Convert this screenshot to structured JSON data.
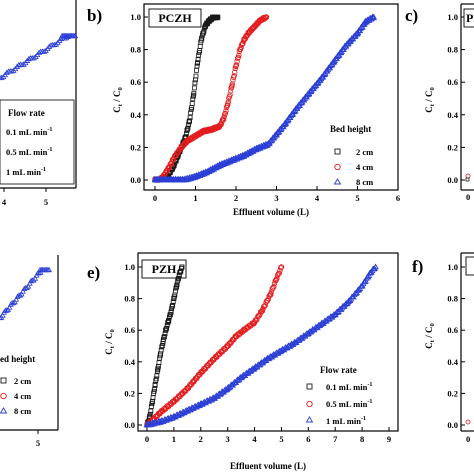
{
  "figure": {
    "panel_letters": {
      "b": "b)",
      "c": "c)",
      "e": "e)",
      "f": "f)"
    },
    "titles": {
      "b": "PCZH",
      "c": "PI",
      "e": "PZH",
      "f": ""
    },
    "ylabel": "Ct / C0",
    "xlabel": "Effluent volume (L)"
  },
  "legends": {
    "a": {
      "title": "Flow rate",
      "entries": [
        "0.1 mL min",
        "0.5 mL min",
        "1 mL min"
      ],
      "superscript": "-1"
    },
    "b": {
      "title": "Bed height",
      "entries": [
        "2 cm",
        "4 cm",
        "8 cm"
      ]
    },
    "d": {
      "title": "ed height",
      "entries": [
        "2 cm",
        "4 cm",
        "8 cm"
      ]
    },
    "e": {
      "title": "Flow rate",
      "entries": [
        "0.1 mL min",
        "0.5 mL min",
        "1 mL min"
      ],
      "superscript": "-1"
    }
  },
  "colors": {
    "black": "#1a1a1a",
    "red": "#e41a1c",
    "blue": "#2b3fd6"
  },
  "chart_data": [
    {
      "panel": "b",
      "type": "scatter",
      "title": "PCZH",
      "xlabel": "Effluent volume (L)",
      "ylabel": "Ct / C0",
      "xlim": [
        0,
        6
      ],
      "ylim": [
        0,
        1.0
      ],
      "xticks": [
        0,
        1,
        2,
        3,
        4,
        5,
        6
      ],
      "yticks": [
        0.0,
        0.2,
        0.4,
        0.6,
        0.8,
        1.0
      ],
      "legend_position": "right",
      "series": [
        {
          "name": "2 cm",
          "marker": "square",
          "color": "#1a1a1a",
          "x": [
            0.0,
            0.1,
            0.3,
            0.45,
            0.55,
            0.65,
            0.75,
            0.85,
            0.95,
            1.05,
            1.15,
            1.25,
            1.35,
            1.45,
            1.55
          ],
          "y": [
            0.0,
            0.0,
            0.02,
            0.08,
            0.14,
            0.2,
            0.26,
            0.36,
            0.52,
            0.72,
            0.87,
            0.95,
            0.98,
            1.0,
            1.0
          ]
        },
        {
          "name": "4 cm",
          "marker": "circle",
          "color": "#e41a1c",
          "x": [
            0.0,
            0.1,
            0.2,
            0.35,
            0.5,
            0.65,
            0.8,
            1.0,
            1.2,
            1.4,
            1.6,
            1.7,
            1.8,
            1.9,
            2.0,
            2.1,
            2.2,
            2.3,
            2.45,
            2.6,
            2.75
          ],
          "y": [
            0.0,
            0.0,
            0.02,
            0.08,
            0.15,
            0.2,
            0.24,
            0.27,
            0.3,
            0.31,
            0.33,
            0.38,
            0.47,
            0.58,
            0.7,
            0.8,
            0.86,
            0.9,
            0.94,
            0.98,
            1.0
          ]
        },
        {
          "name": "8 cm",
          "marker": "triangle",
          "color": "#2b3fd6",
          "x": [
            0.0,
            0.3,
            0.5,
            0.7,
            1.0,
            1.3,
            1.6,
            1.9,
            2.2,
            2.5,
            2.8,
            3.0,
            3.2,
            3.5,
            3.8,
            4.1,
            4.4,
            4.7,
            5.0,
            5.2,
            5.4
          ],
          "y": [
            0.0,
            0.0,
            0.0,
            0.0,
            0.02,
            0.05,
            0.09,
            0.12,
            0.15,
            0.19,
            0.22,
            0.28,
            0.34,
            0.44,
            0.53,
            0.62,
            0.72,
            0.82,
            0.9,
            0.97,
            1.0
          ]
        }
      ]
    },
    {
      "panel": "e",
      "type": "scatter",
      "title": "PZH",
      "xlabel": "Effluent volume (L)",
      "ylabel": "Ct / C0",
      "xlim": [
        0,
        9
      ],
      "ylim": [
        0,
        1.0
      ],
      "xticks": [
        0,
        1,
        2,
        3,
        4,
        5,
        6,
        7,
        8,
        9
      ],
      "yticks": [
        0.0,
        0.2,
        0.4,
        0.6,
        0.8,
        1.0
      ],
      "legend_position": "right",
      "series": [
        {
          "name": "0.1 mL min-1",
          "marker": "square",
          "color": "#1a1a1a",
          "x": [
            0.0,
            0.1,
            0.2,
            0.3,
            0.4,
            0.5,
            0.6,
            0.7,
            0.8,
            0.9,
            1.0,
            1.1,
            1.2,
            1.3
          ],
          "y": [
            0.0,
            0.05,
            0.15,
            0.25,
            0.35,
            0.45,
            0.53,
            0.6,
            0.66,
            0.72,
            0.8,
            0.88,
            0.95,
            1.0
          ]
        },
        {
          "name": "0.5 mL min-1",
          "marker": "circle",
          "color": "#e41a1c",
          "x": [
            0.0,
            0.2,
            0.5,
            1.0,
            1.5,
            2.0,
            2.5,
            3.0,
            3.3,
            3.6,
            4.0,
            4.3,
            4.6,
            4.8,
            5.0
          ],
          "y": [
            0.0,
            0.03,
            0.08,
            0.15,
            0.23,
            0.33,
            0.42,
            0.5,
            0.56,
            0.6,
            0.65,
            0.73,
            0.83,
            0.92,
            1.0
          ]
        },
        {
          "name": "1 mL min-1",
          "marker": "triangle",
          "color": "#2b3fd6",
          "x": [
            0.0,
            0.5,
            1.0,
            1.5,
            2.0,
            2.5,
            3.0,
            3.5,
            4.0,
            4.5,
            5.0,
            5.5,
            6.0,
            6.5,
            7.0,
            7.5,
            8.0,
            8.3,
            8.5
          ],
          "y": [
            0.0,
            0.02,
            0.05,
            0.09,
            0.13,
            0.17,
            0.23,
            0.3,
            0.36,
            0.42,
            0.47,
            0.52,
            0.58,
            0.64,
            0.7,
            0.78,
            0.88,
            0.96,
            1.0
          ]
        }
      ]
    }
  ]
}
